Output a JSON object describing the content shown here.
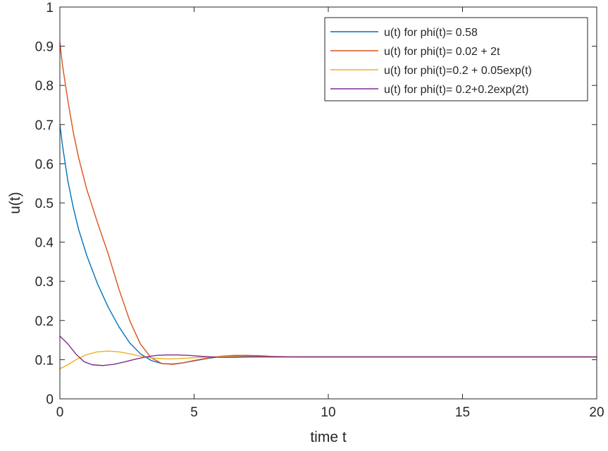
{
  "chart_data": {
    "type": "line",
    "title": "",
    "xlabel": "time t",
    "ylabel": "u(t)",
    "xlim": [
      0,
      20
    ],
    "ylim": [
      0,
      1
    ],
    "xticks": [
      0,
      5,
      10,
      15,
      20
    ],
    "yticks": [
      0,
      0.1,
      0.2,
      0.3,
      0.4,
      0.5,
      0.6,
      0.7,
      0.8,
      0.9,
      1
    ],
    "x_tick_labels": [
      "0",
      "5",
      "10",
      "15",
      "20"
    ],
    "y_tick_labels": [
      "0",
      "0.1",
      "0.2",
      "0.3",
      "0.4",
      "0.5",
      "0.6",
      "0.7",
      "0.8",
      "0.9",
      "1"
    ],
    "grid": false,
    "legend_position": "top-right",
    "series": [
      {
        "name": "u(t) for phi(t)= 0.58",
        "color": "#0072bd",
        "x": [
          0,
          0.1,
          0.3,
          0.5,
          0.7,
          1.0,
          1.4,
          1.8,
          2.2,
          2.6,
          3.0,
          3.4,
          3.8,
          4.2,
          4.6,
          5.0,
          5.5,
          6.0,
          6.5,
          7.0,
          7.5,
          8.0,
          9.0,
          10.0,
          11.0,
          12.0,
          14.0,
          16.0,
          18.0,
          20.0
        ],
        "y": [
          0.7,
          0.645,
          0.555,
          0.488,
          0.432,
          0.366,
          0.294,
          0.234,
          0.184,
          0.143,
          0.115,
          0.098,
          0.09,
          0.089,
          0.092,
          0.097,
          0.103,
          0.108,
          0.11,
          0.11,
          0.109,
          0.108,
          0.107,
          0.107,
          0.107,
          0.107,
          0.107,
          0.107,
          0.107,
          0.107
        ]
      },
      {
        "name": "u(t) for phi(t)= 0.02 + 2t",
        "color": "#d95319",
        "x": [
          0,
          0.1,
          0.3,
          0.5,
          0.7,
          1.0,
          1.4,
          1.8,
          2.2,
          2.6,
          3.0,
          3.4,
          3.8,
          4.2,
          4.6,
          5.0,
          5.5,
          6.0,
          6.5,
          7.0,
          7.5,
          8.0,
          9.0,
          10.0,
          11.0,
          12.0,
          14.0,
          16.0,
          18.0,
          20.0
        ],
        "y": [
          0.91,
          0.85,
          0.76,
          0.68,
          0.615,
          0.535,
          0.45,
          0.37,
          0.28,
          0.2,
          0.14,
          0.105,
          0.09,
          0.088,
          0.092,
          0.098,
          0.104,
          0.109,
          0.111,
          0.111,
          0.11,
          0.108,
          0.107,
          0.107,
          0.107,
          0.107,
          0.107,
          0.107,
          0.107,
          0.107
        ]
      },
      {
        "name": "u(t) for phi(t)=0.2 + 0.05exp(t)",
        "color": "#edb120",
        "x": [
          0,
          0.3,
          0.6,
          1.0,
          1.4,
          1.8,
          2.2,
          2.6,
          3.0,
          3.5,
          4.0,
          4.5,
          5.0,
          5.5,
          6.0,
          6.5,
          7.0,
          8.0,
          9.0,
          10.0,
          12.0,
          14.0,
          16.0,
          18.0,
          20.0
        ],
        "y": [
          0.077,
          0.087,
          0.1,
          0.113,
          0.12,
          0.122,
          0.12,
          0.115,
          0.109,
          0.104,
          0.102,
          0.103,
          0.105,
          0.107,
          0.108,
          0.108,
          0.108,
          0.107,
          0.107,
          0.107,
          0.107,
          0.107,
          0.107,
          0.107,
          0.107
        ]
      },
      {
        "name": "u(t) for phi(t)= 0.2+0.2exp(2t)",
        "color": "#7e2f8e",
        "x": [
          0,
          0.3,
          0.6,
          0.9,
          1.2,
          1.6,
          2.0,
          2.4,
          2.8,
          3.2,
          3.6,
          4.0,
          4.4,
          4.8,
          5.2,
          5.6,
          6.0,
          6.5,
          7.0,
          8.0,
          9.0,
          10.0,
          12.0,
          14.0,
          16.0,
          18.0,
          20.0
        ],
        "y": [
          0.16,
          0.14,
          0.114,
          0.095,
          0.087,
          0.085,
          0.088,
          0.094,
          0.101,
          0.107,
          0.111,
          0.112,
          0.112,
          0.111,
          0.109,
          0.107,
          0.106,
          0.106,
          0.107,
          0.107,
          0.107,
          0.107,
          0.107,
          0.107,
          0.107,
          0.107,
          0.107
        ]
      }
    ]
  }
}
